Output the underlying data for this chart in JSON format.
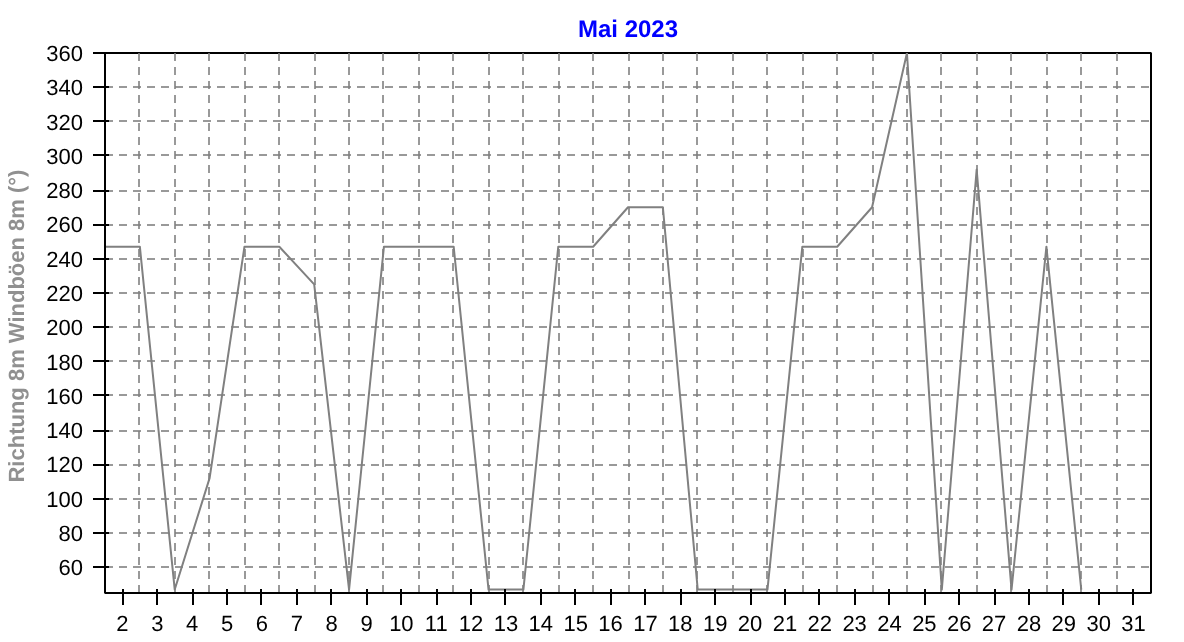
{
  "chart_data": {
    "type": "line",
    "title": "Mai 2023",
    "ylabel": "Richtung 8m Windböen 8m  (°)",
    "x": [
      2,
      3,
      4,
      5,
      6,
      7,
      8,
      9,
      10,
      11,
      12,
      13,
      14,
      15,
      16,
      17,
      18,
      19,
      20,
      21,
      22,
      23,
      24,
      25,
      26,
      27,
      28,
      29,
      30
    ],
    "series": [
      {
        "color": "#808080",
        "values": [
          247,
          247,
          47,
          112,
          247,
          247,
          225,
          47,
          247,
          247,
          247,
          47,
          47,
          247,
          247,
          270,
          270,
          47,
          47,
          47,
          247,
          247,
          270,
          360,
          47,
          292,
          47,
          247,
          47
        ]
      }
    ],
    "xlim": [
      2,
      32
    ],
    "xticks": [
      {
        "value": 2.5,
        "label": "2"
      },
      {
        "value": 3.5,
        "label": "3"
      },
      {
        "value": 4.5,
        "label": "4"
      },
      {
        "value": 5.5,
        "label": "5"
      },
      {
        "value": 6.5,
        "label": "6"
      },
      {
        "value": 7.5,
        "label": "7"
      },
      {
        "value": 8.5,
        "label": "8"
      },
      {
        "value": 9.5,
        "label": "9"
      },
      {
        "value": 10.5,
        "label": "10"
      },
      {
        "value": 11.5,
        "label": "11"
      },
      {
        "value": 12.5,
        "label": "12"
      },
      {
        "value": 13.5,
        "label": "13"
      },
      {
        "value": 14.5,
        "label": "14"
      },
      {
        "value": 15.5,
        "label": "15"
      },
      {
        "value": 16.5,
        "label": "16"
      },
      {
        "value": 17.5,
        "label": "17"
      },
      {
        "value": 18.5,
        "label": "18"
      },
      {
        "value": 19.5,
        "label": "19"
      },
      {
        "value": 20.5,
        "label": "20"
      },
      {
        "value": 21.5,
        "label": "21"
      },
      {
        "value": 22.5,
        "label": "22"
      },
      {
        "value": 23.5,
        "label": "23"
      },
      {
        "value": 24.5,
        "label": "24"
      },
      {
        "value": 25.5,
        "label": "25"
      },
      {
        "value": 26.5,
        "label": "26"
      },
      {
        "value": 27.5,
        "label": "27"
      },
      {
        "value": 28.5,
        "label": "28"
      },
      {
        "value": 29.5,
        "label": "29"
      },
      {
        "value": 30.5,
        "label": "30"
      },
      {
        "value": 31.5,
        "label": "31"
      }
    ],
    "ylim": [
      45,
      360
    ],
    "yticks": [
      60,
      80,
      100,
      120,
      140,
      160,
      180,
      200,
      220,
      240,
      260,
      280,
      300,
      320,
      340,
      360
    ],
    "grid": true,
    "marker": "none",
    "line_style": "solid"
  }
}
